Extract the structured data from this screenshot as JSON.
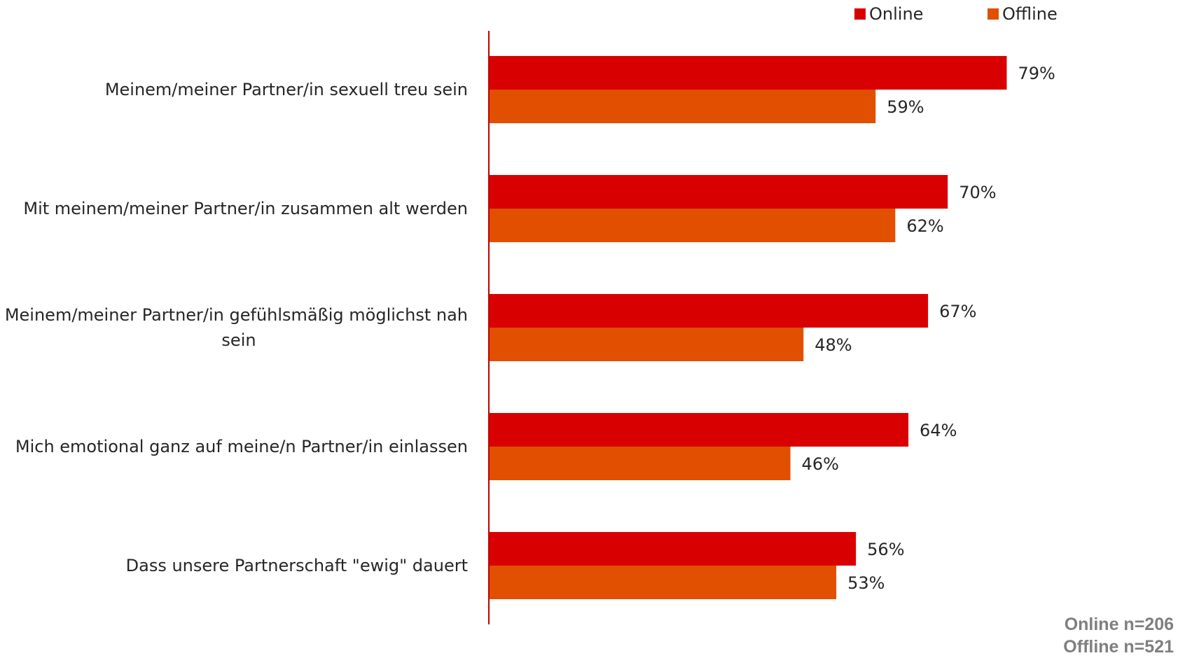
{
  "chart_data": {
    "type": "bar",
    "orientation": "horizontal",
    "categories": [
      [
        "Meinem/meiner Partner/in sexuell treu sein"
      ],
      [
        "Mit meinem/meiner Partner/in zusammen alt werden"
      ],
      [
        "Meinem/meiner Partner/in gefühlsmäßig möglichst nah",
        "sein"
      ],
      [
        "Mich emotional ganz auf meine/n Partner/in einlassen"
      ],
      [
        "Dass unsere Partnerschaft \"ewig\" dauert"
      ]
    ],
    "series": [
      {
        "name": "Online",
        "color": "#d80000",
        "values": [
          79,
          70,
          67,
          64,
          56
        ],
        "labels": [
          "79%",
          "70%",
          "67%",
          "64%",
          "56%"
        ]
      },
      {
        "name": "Offline",
        "color": "#e05000",
        "values": [
          59,
          62,
          48,
          46,
          53
        ],
        "labels": [
          "59%",
          "62%",
          "48%",
          "46%",
          "53%"
        ]
      }
    ],
    "xlim": [
      0,
      100
    ],
    "axis_color": "#c00000",
    "grid": false,
    "legend_position": "top-right",
    "notes": [
      "Online n=206",
      "Offline n=521"
    ]
  }
}
